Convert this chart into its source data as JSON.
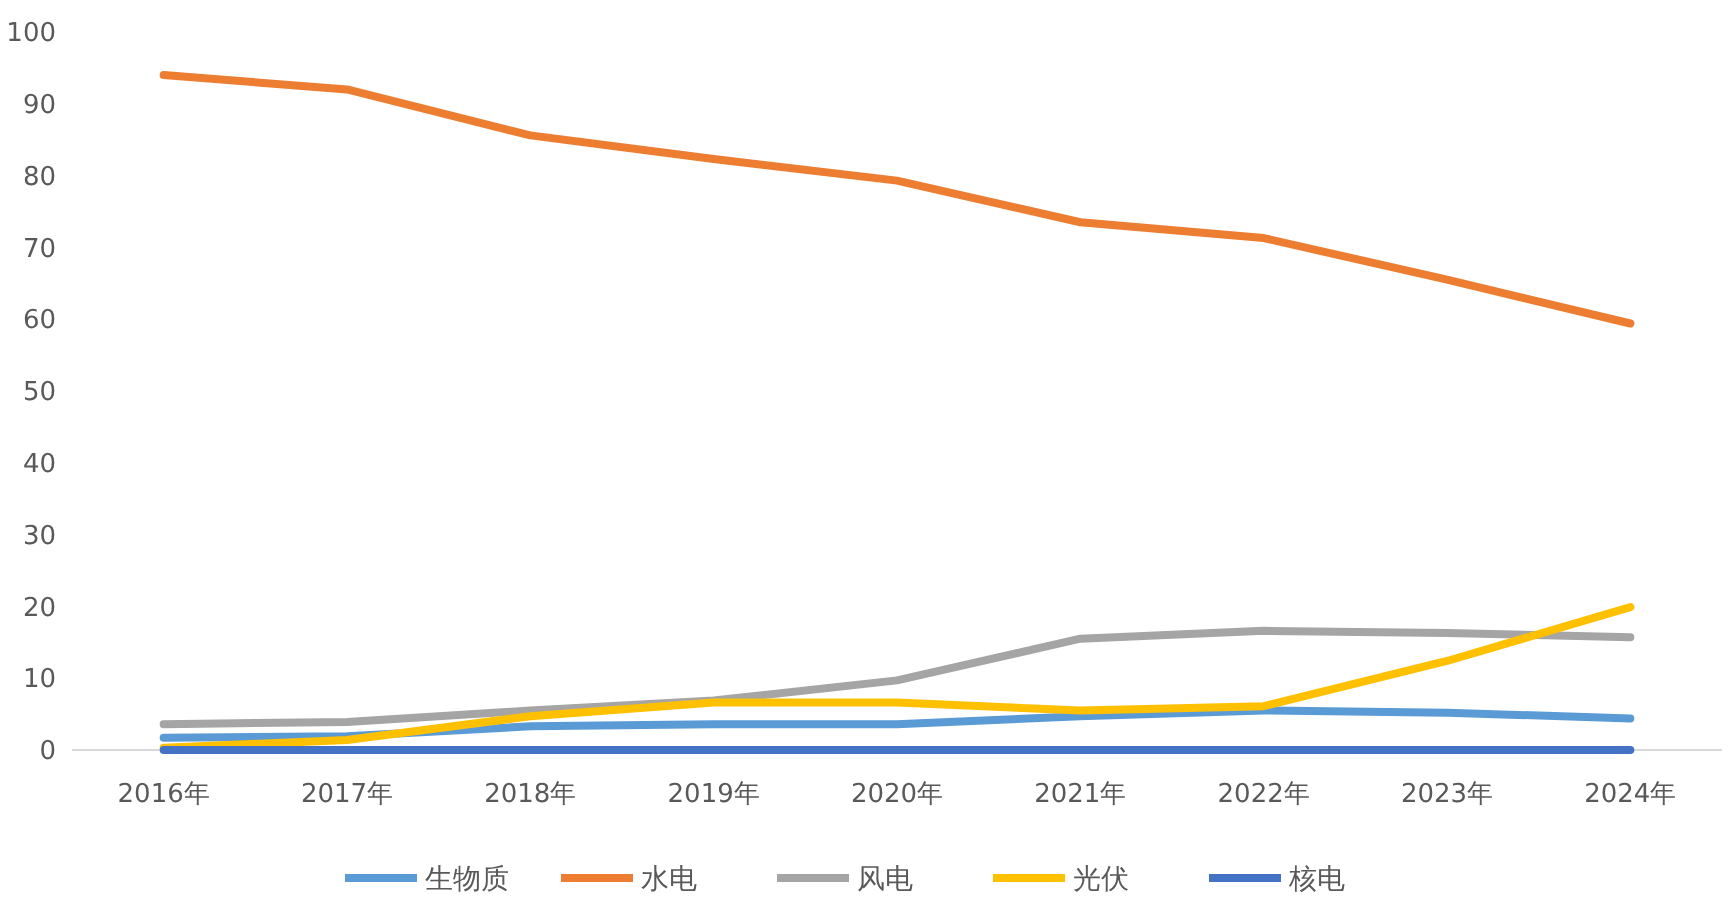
{
  "chart_data": {
    "type": "line",
    "categories": [
      "2016年",
      "2017年",
      "2018年",
      "2019年",
      "2020年",
      "2021年",
      "2022年",
      "2023年",
      "2024年"
    ],
    "ylim": [
      0,
      100
    ],
    "yticks": [
      0,
      10,
      20,
      30,
      40,
      50,
      60,
      70,
      80,
      90,
      100
    ],
    "grid": false,
    "legend": "bottom",
    "marker": "none",
    "line_style": "solid",
    "series": [
      {
        "name": "生物质",
        "color": "#5b9bd5",
        "values": [
          1.7,
          1.9,
          3.3,
          3.6,
          3.6,
          4.7,
          5.5,
          5.2,
          4.4
        ]
      },
      {
        "name": "水电",
        "color": "#ed7d31",
        "values": [
          94,
          92,
          85.6,
          82.3,
          79.3,
          73.5,
          71.3,
          65.5,
          59.4
        ]
      },
      {
        "name": "风电",
        "color": "#a5a5a5",
        "values": [
          3.6,
          3.9,
          5.5,
          6.9,
          9.7,
          15.5,
          16.6,
          16.3,
          15.7
        ]
      },
      {
        "name": "光伏",
        "color": "#ffc000",
        "values": [
          0.3,
          1.4,
          4.7,
          6.6,
          6.6,
          5.5,
          6.1,
          12.4,
          19.9
        ]
      },
      {
        "name": "核电",
        "color": "#4472c4",
        "values": [
          0,
          0,
          0,
          0,
          0,
          0,
          0,
          0,
          0
        ]
      }
    ]
  }
}
